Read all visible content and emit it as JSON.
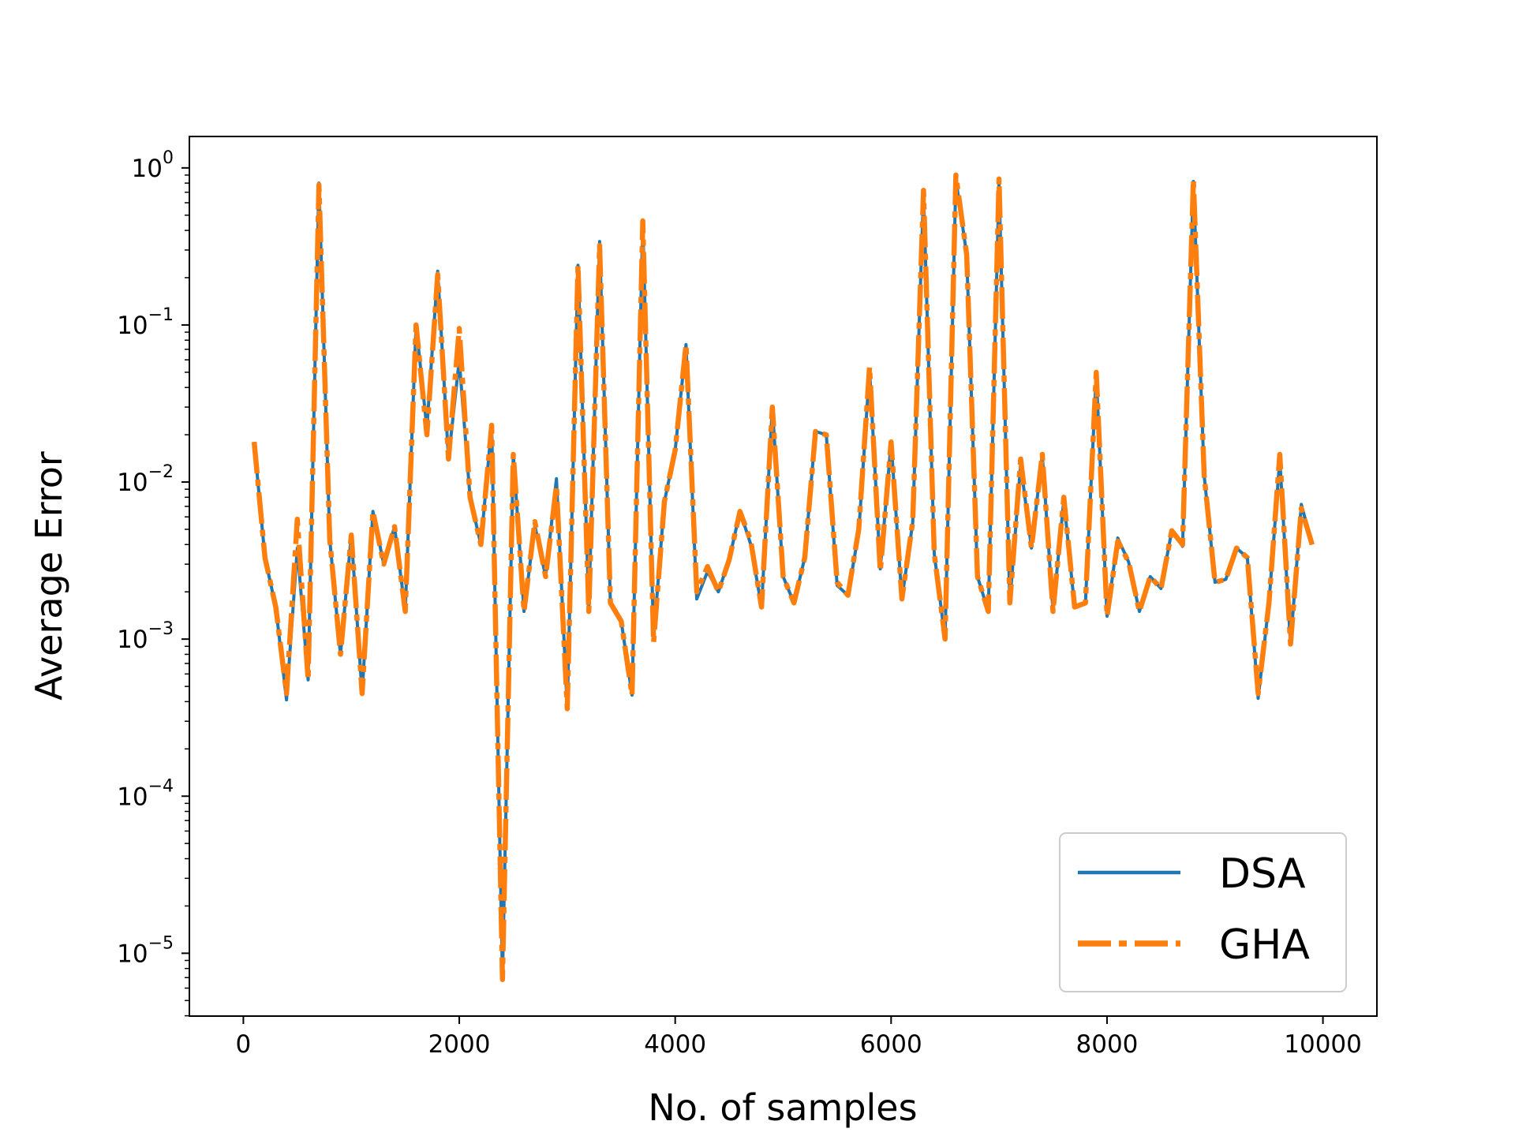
{
  "chart_data": {
    "type": "line",
    "xlabel": "No. of samples",
    "ylabel": "Average Error",
    "xlim": [
      -500,
      10500
    ],
    "ylim_log10": [
      -5.4,
      0.2
    ],
    "yscale": "log",
    "grid": false,
    "legend_position": "lower-right",
    "x_ticks": [
      {
        "value": 0,
        "label": "0"
      },
      {
        "value": 2000,
        "label": "2000"
      },
      {
        "value": 4000,
        "label": "4000"
      },
      {
        "value": 6000,
        "label": "6000"
      },
      {
        "value": 8000,
        "label": "8000"
      },
      {
        "value": 10000,
        "label": "10000"
      }
    ],
    "y_ticks": [
      {
        "exp": 0,
        "base": "10",
        "sup": "0"
      },
      {
        "exp": -1,
        "base": "10",
        "sup": "−1"
      },
      {
        "exp": -2,
        "base": "10",
        "sup": "−2"
      },
      {
        "exp": -3,
        "base": "10",
        "sup": "−3"
      },
      {
        "exp": -4,
        "base": "10",
        "sup": "−4"
      },
      {
        "exp": -5,
        "base": "10",
        "sup": "−5"
      }
    ],
    "x": [
      100,
      200,
      300,
      400,
      500,
      600,
      700,
      800,
      900,
      1000,
      1100,
      1200,
      1300,
      1400,
      1500,
      1600,
      1700,
      1800,
      1900,
      2000,
      2100,
      2200,
      2300,
      2400,
      2500,
      2600,
      2700,
      2800,
      2900,
      3000,
      3100,
      3200,
      3300,
      3400,
      3500,
      3600,
      3700,
      3800,
      3900,
      4000,
      4100,
      4200,
      4300,
      4400,
      4500,
      4600,
      4700,
      4800,
      4900,
      5000,
      5100,
      5200,
      5300,
      5400,
      5500,
      5600,
      5700,
      5800,
      5900,
      6000,
      6100,
      6200,
      6300,
      6400,
      6500,
      6600,
      6700,
      6800,
      6900,
      7000,
      7100,
      7200,
      7300,
      7400,
      7500,
      7600,
      7700,
      7800,
      7900,
      8000,
      8100,
      8200,
      8300,
      8400,
      8500,
      8600,
      8700,
      8800,
      8900,
      9000,
      9100,
      9200,
      9300,
      9400,
      9500,
      9600,
      9700,
      9800,
      9900
    ],
    "series": [
      {
        "name": "DSA",
        "color": "#1f77b4",
        "style": "solid",
        "values": [
          0.018,
          0.0033,
          0.0016,
          0.00041,
          0.0038,
          0.00055,
          0.8,
          0.0043,
          0.0008,
          0.0046,
          0.00045,
          0.0065,
          0.003,
          0.0052,
          0.0015,
          0.1,
          0.022,
          0.22,
          0.014,
          0.06,
          0.008,
          0.004,
          0.023,
          7e-06,
          0.015,
          0.0015,
          0.0053,
          0.0025,
          0.0105,
          0.00036,
          0.24,
          0.0016,
          0.34,
          0.0017,
          0.0013,
          0.00044,
          0.46,
          0.001,
          0.0075,
          0.016,
          0.075,
          0.0018,
          0.0027,
          0.002,
          0.0032,
          0.0065,
          0.004,
          0.0016,
          0.03,
          0.0025,
          0.0017,
          0.0033,
          0.021,
          0.02,
          0.0022,
          0.0019,
          0.0048,
          0.052,
          0.0028,
          0.018,
          0.0018,
          0.0055,
          0.7,
          0.0035,
          0.001,
          0.85,
          0.28,
          0.0025,
          0.0015,
          0.8,
          0.0017,
          0.013,
          0.0038,
          0.015,
          0.0015,
          0.0077,
          0.0016,
          0.0017,
          0.049,
          0.0014,
          0.0044,
          0.0031,
          0.0015,
          0.0025,
          0.0021,
          0.0049,
          0.0039,
          0.82,
          0.011,
          0.0023,
          0.0024,
          0.0038,
          0.0033,
          0.00042,
          0.0017,
          0.014,
          0.00093,
          0.0072,
          0.004
        ]
      },
      {
        "name": "GHA",
        "color": "#ff7f0e",
        "style": "dashdot",
        "values": [
          0.018,
          0.0033,
          0.0016,
          0.00045,
          0.0058,
          0.00055,
          0.78,
          0.0043,
          0.0008,
          0.0046,
          0.00045,
          0.0065,
          0.003,
          0.0052,
          0.0015,
          0.1,
          0.02,
          0.21,
          0.014,
          0.095,
          0.008,
          0.004,
          0.023,
          6.8e-06,
          0.015,
          0.0015,
          0.0056,
          0.0025,
          0.0095,
          0.00036,
          0.24,
          0.0015,
          0.32,
          0.0017,
          0.0013,
          0.00044,
          0.46,
          0.00095,
          0.0075,
          0.016,
          0.075,
          0.002,
          0.0029,
          0.002,
          0.0032,
          0.0065,
          0.0042,
          0.0016,
          0.03,
          0.0025,
          0.0017,
          0.0033,
          0.021,
          0.02,
          0.0023,
          0.0019,
          0.005,
          0.054,
          0.0027,
          0.018,
          0.0018,
          0.0056,
          0.72,
          0.0035,
          0.001,
          0.9,
          0.28,
          0.0025,
          0.0015,
          0.85,
          0.0017,
          0.014,
          0.0038,
          0.015,
          0.0015,
          0.008,
          0.0016,
          0.0017,
          0.05,
          0.0014,
          0.0042,
          0.0031,
          0.0015,
          0.0025,
          0.0021,
          0.0049,
          0.004,
          0.84,
          0.011,
          0.0023,
          0.0024,
          0.0038,
          0.0033,
          0.00045,
          0.0017,
          0.015,
          0.00093,
          0.0068,
          0.004
        ]
      }
    ]
  }
}
